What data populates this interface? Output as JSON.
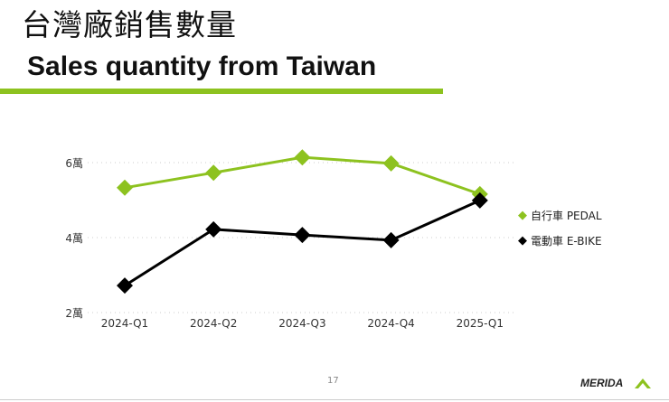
{
  "header": {
    "title_zh": "台灣廠銷售數量",
    "title_en": "Sales quantity from Taiwan",
    "accent_color": "#8dc21f"
  },
  "chart_data": {
    "type": "line",
    "categories": [
      "2024-Q1",
      "2024-Q2",
      "2024-Q3",
      "2024-Q4",
      "2025-Q1"
    ],
    "y_unit": "萬",
    "yticks": [
      {
        "value": 2,
        "label": "2萬"
      },
      {
        "value": 4,
        "label": "4萬"
      },
      {
        "value": 6,
        "label": "6萬"
      }
    ],
    "ylim": [
      2,
      6
    ],
    "grid": "horizontal dotted",
    "legend_position": "right",
    "series": [
      {
        "name": "自行車 PEDAL",
        "color": "#8dc21f",
        "marker": "diamond",
        "values": [
          5.33,
          5.73,
          6.14,
          5.98,
          5.16
        ]
      },
      {
        "name": "電動車 E-BIKE",
        "color": "#000000",
        "marker": "diamond",
        "values": [
          2.72,
          4.22,
          4.07,
          3.93,
          4.99
        ]
      }
    ]
  },
  "footer": {
    "page_number": "17",
    "logo_text": "MERIDA"
  }
}
